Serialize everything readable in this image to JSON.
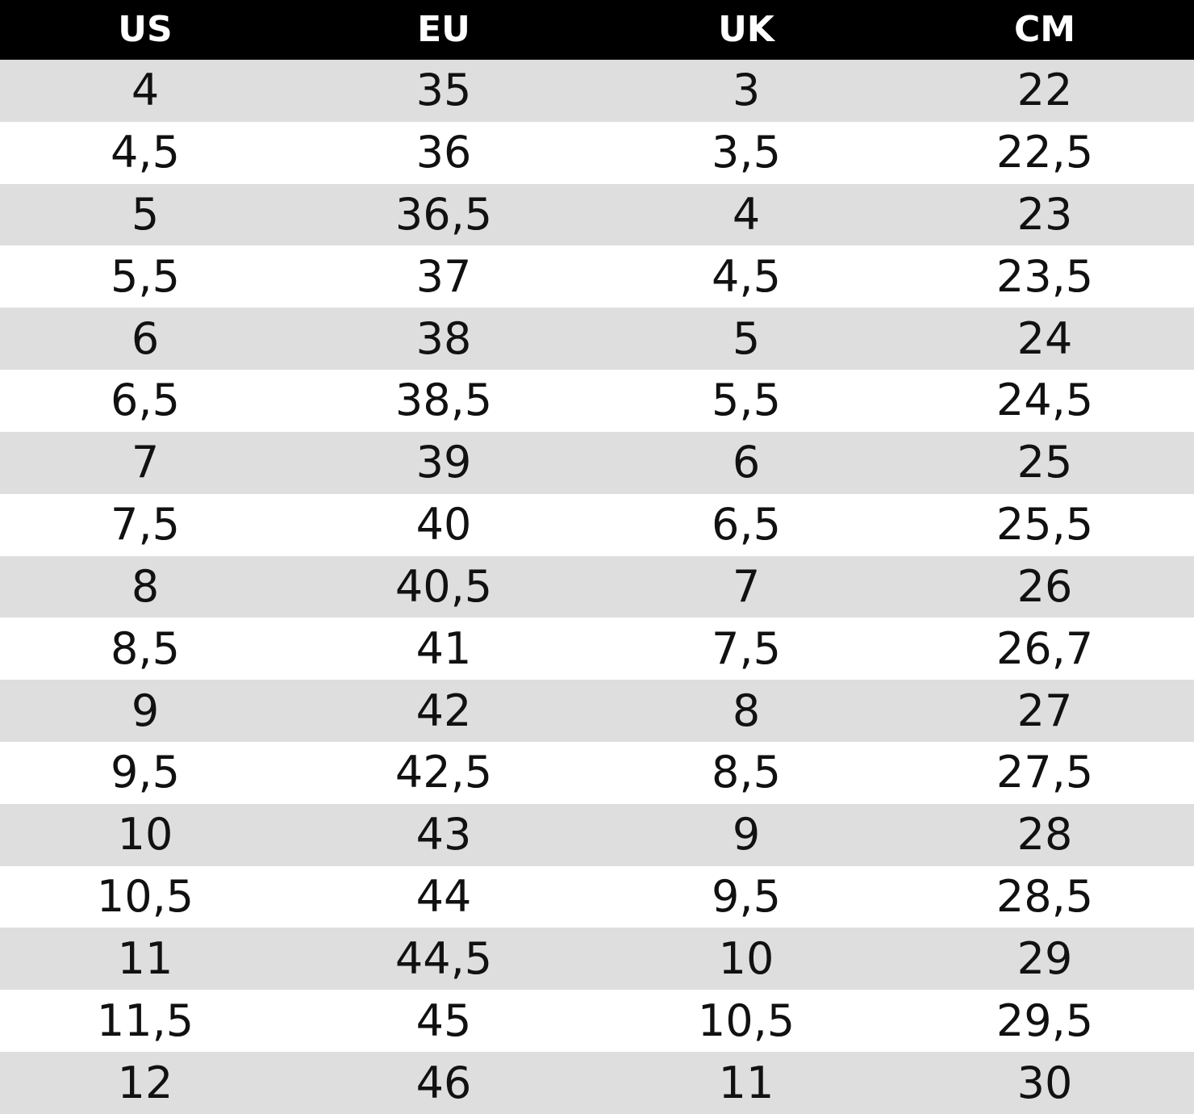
{
  "headers": [
    "US",
    "EU",
    "UK",
    "CM"
  ],
  "rows": [
    [
      "4",
      "35",
      "3",
      "22"
    ],
    [
      "4,5",
      "36",
      "3,5",
      "22,5"
    ],
    [
      "5",
      "36,5",
      "4",
      "23"
    ],
    [
      "5,5",
      "37",
      "4,5",
      "23,5"
    ],
    [
      "6",
      "38",
      "5",
      "24"
    ],
    [
      "6,5",
      "38,5",
      "5,5",
      "24,5"
    ],
    [
      "7",
      "39",
      "6",
      "25"
    ],
    [
      "7,5",
      "40",
      "6,5",
      "25,5"
    ],
    [
      "8",
      "40,5",
      "7",
      "26"
    ],
    [
      "8,5",
      "41",
      "7,5",
      "26,7"
    ],
    [
      "9",
      "42",
      "8",
      "27"
    ],
    [
      "9,5",
      "42,5",
      "8,5",
      "27,5"
    ],
    [
      "10",
      "43",
      "9",
      "28"
    ],
    [
      "10,5",
      "44",
      "9,5",
      "28,5"
    ],
    [
      "11",
      "44,5",
      "10",
      "29"
    ],
    [
      "11,5",
      "45",
      "10,5",
      "29,5"
    ],
    [
      "12",
      "46",
      "11",
      "30"
    ]
  ],
  "colors": {
    "header_bg": "#000000",
    "header_text": "#ffffff",
    "row_shaded": "#dedede",
    "row_plain": "#ffffff",
    "cell_text": "#111111"
  }
}
